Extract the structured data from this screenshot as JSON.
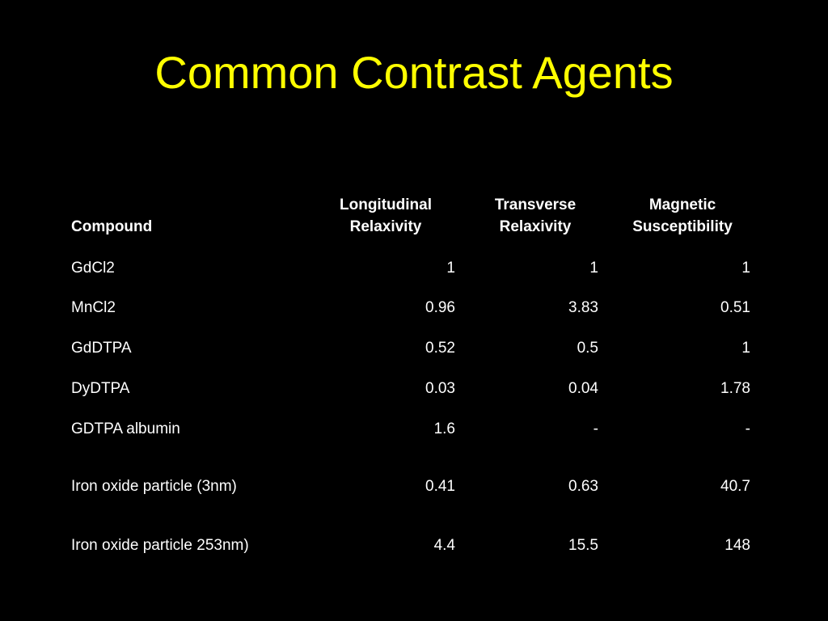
{
  "title": "Common Contrast Agents",
  "table": {
    "header": [
      [
        "Compound"
      ],
      [
        "Longitudinal",
        "Relaxivity"
      ],
      [
        "Transverse",
        "Relaxivity"
      ],
      [
        "Magnetic",
        "Susceptibility"
      ]
    ],
    "rows": [
      [
        "GdCl2",
        "1",
        "1",
        "1"
      ],
      [
        "MnCl2",
        "0.96",
        "3.83",
        "0.51"
      ],
      [
        "GdDTPA",
        "0.52",
        "0.5",
        "1"
      ],
      [
        "DyDTPA",
        "0.03",
        "0.04",
        "1.78"
      ],
      [
        "GDTPA albumin",
        "1.6",
        "-",
        "-"
      ],
      [
        "Iron oxide particle (3nm)",
        "0.41",
        "0.63",
        "40.7"
      ],
      [
        "Iron oxide particle 253nm)",
        "4.4",
        "15.5",
        "148"
      ]
    ]
  }
}
